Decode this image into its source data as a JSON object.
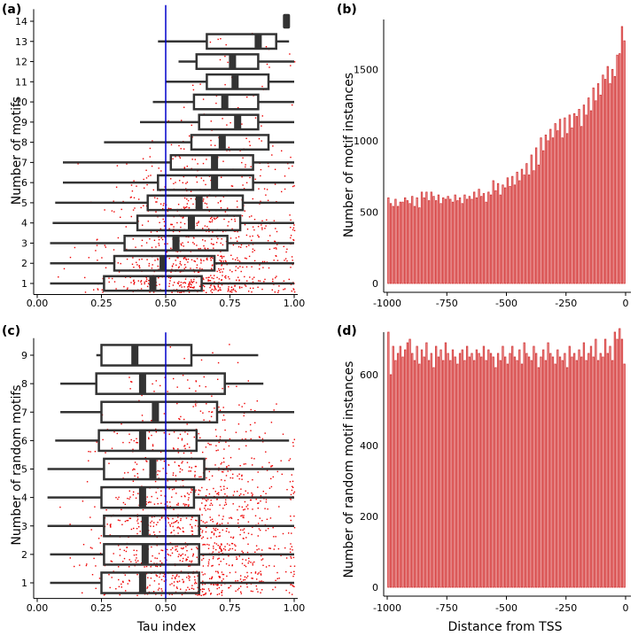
{
  "chart_data": [
    {
      "panel": "(a)",
      "type": "boxplot",
      "xlabel": "",
      "ylabel": "Number of motifs",
      "xlim": [
        0,
        1
      ],
      "xticks": [
        "0.00",
        "0.25",
        "0.50",
        "0.75",
        "1.00"
      ],
      "reference_line": 0.5,
      "categories": [
        "1",
        "2",
        "3",
        "4",
        "5",
        "6",
        "7",
        "8",
        "9",
        "10",
        "11",
        "12",
        "13",
        "14"
      ],
      "boxes": [
        {
          "cat": "1",
          "whisker_low": 0.05,
          "q1": 0.26,
          "median": 0.45,
          "q3": 0.64,
          "whisker_high": 1.0
        },
        {
          "cat": "2",
          "whisker_low": 0.05,
          "q1": 0.3,
          "median": 0.49,
          "q3": 0.69,
          "whisker_high": 1.0
        },
        {
          "cat": "3",
          "whisker_low": 0.05,
          "q1": 0.34,
          "median": 0.54,
          "q3": 0.74,
          "whisker_high": 1.0
        },
        {
          "cat": "4",
          "whisker_low": 0.06,
          "q1": 0.39,
          "median": 0.6,
          "q3": 0.79,
          "whisker_high": 1.0
        },
        {
          "cat": "5",
          "whisker_low": 0.07,
          "q1": 0.43,
          "median": 0.63,
          "q3": 0.8,
          "whisker_high": 1.0
        },
        {
          "cat": "6",
          "whisker_low": 0.1,
          "q1": 0.47,
          "median": 0.69,
          "q3": 0.84,
          "whisker_high": 1.0
        },
        {
          "cat": "7",
          "whisker_low": 0.1,
          "q1": 0.52,
          "median": 0.69,
          "q3": 0.84,
          "whisker_high": 1.0
        },
        {
          "cat": "8",
          "whisker_low": 0.26,
          "q1": 0.6,
          "median": 0.72,
          "q3": 0.9,
          "whisker_high": 1.0
        },
        {
          "cat": "9",
          "whisker_low": 0.4,
          "q1": 0.63,
          "median": 0.78,
          "q3": 0.86,
          "whisker_high": 1.0
        },
        {
          "cat": "10",
          "whisker_low": 0.45,
          "q1": 0.61,
          "median": 0.73,
          "q3": 0.86,
          "whisker_high": 1.0
        },
        {
          "cat": "11",
          "whisker_low": 0.5,
          "q1": 0.66,
          "median": 0.77,
          "q3": 0.9,
          "whisker_high": 1.0
        },
        {
          "cat": "12",
          "whisker_low": 0.55,
          "q1": 0.62,
          "median": 0.76,
          "q3": 0.86,
          "whisker_high": 1.0
        },
        {
          "cat": "13",
          "whisker_low": 0.47,
          "q1": 0.66,
          "median": 0.86,
          "q3": 0.93,
          "whisker_high": 0.98
        },
        {
          "cat": "14",
          "whisker_low": 0.97,
          "q1": 0.97,
          "median": 0.97,
          "q3": 0.97,
          "whisker_high": 0.97
        }
      ],
      "scatter_density": [
        1.0,
        0.7,
        0.55,
        0.45,
        0.35,
        0.25,
        0.18,
        0.12,
        0.06,
        0.05,
        0.04,
        0.04,
        0.03,
        0.0
      ]
    },
    {
      "panel": "(b)",
      "type": "bar",
      "xlabel": "",
      "ylabel": "Number of motif instances",
      "xlim": [
        -1000,
        0
      ],
      "ylim": [
        0,
        1800
      ],
      "xticks": [
        "-1000",
        "-750",
        "-500",
        "-250",
        "0"
      ],
      "yticks": [
        "0",
        "500",
        "1000",
        "1500"
      ],
      "bin_width": 10,
      "x_start": -1000,
      "values": [
        600,
        560,
        540,
        590,
        540,
        570,
        570,
        600,
        580,
        560,
        610,
        540,
        600,
        530,
        640,
        600,
        640,
        580,
        640,
        610,
        580,
        620,
        560,
        600,
        590,
        610,
        590,
        570,
        620,
        580,
        600,
        560,
        620,
        590,
        610,
        590,
        640,
        600,
        660,
        610,
        630,
        570,
        640,
        620,
        720,
        650,
        700,
        620,
        690,
        670,
        740,
        680,
        750,
        690,
        780,
        720,
        800,
        760,
        840,
        760,
        900,
        790,
        950,
        830,
        1020,
        930,
        1040,
        1000,
        1080,
        1020,
        1120,
        1070,
        1150,
        1020,
        1160,
        1050,
        1180,
        1090,
        1190,
        1170,
        1220,
        1100,
        1250,
        1180,
        1300,
        1210,
        1370,
        1280,
        1400,
        1320,
        1460,
        1430,
        1520,
        1400,
        1500,
        1450,
        1600,
        1610,
        1800,
        1700
      ]
    },
    {
      "panel": "(c)",
      "type": "boxplot",
      "xlabel": "Tau index",
      "ylabel": "Number of random motifs",
      "xlim": [
        0,
        1
      ],
      "xticks": [
        "0.00",
        "0.25",
        "0.50",
        "0.75",
        "1.00"
      ],
      "reference_line": 0.5,
      "categories": [
        "1",
        "2",
        "3",
        "4",
        "5",
        "6",
        "7",
        "8",
        "9"
      ],
      "boxes": [
        {
          "cat": "1",
          "whisker_low": 0.05,
          "q1": 0.25,
          "median": 0.41,
          "q3": 0.63,
          "whisker_high": 1.0
        },
        {
          "cat": "2",
          "whisker_low": 0.05,
          "q1": 0.26,
          "median": 0.42,
          "q3": 0.63,
          "whisker_high": 1.0
        },
        {
          "cat": "3",
          "whisker_low": 0.04,
          "q1": 0.26,
          "median": 0.42,
          "q3": 0.63,
          "whisker_high": 1.0
        },
        {
          "cat": "4",
          "whisker_low": 0.04,
          "q1": 0.25,
          "median": 0.41,
          "q3": 0.61,
          "whisker_high": 1.0
        },
        {
          "cat": "5",
          "whisker_low": 0.04,
          "q1": 0.26,
          "median": 0.45,
          "q3": 0.65,
          "whisker_high": 1.0
        },
        {
          "cat": "6",
          "whisker_low": 0.07,
          "q1": 0.24,
          "median": 0.41,
          "q3": 0.62,
          "whisker_high": 0.98
        },
        {
          "cat": "7",
          "whisker_low": 0.09,
          "q1": 0.25,
          "median": 0.46,
          "q3": 0.7,
          "whisker_high": 1.0
        },
        {
          "cat": "8",
          "whisker_low": 0.09,
          "q1": 0.23,
          "median": 0.41,
          "q3": 0.73,
          "whisker_high": 0.88
        },
        {
          "cat": "9",
          "whisker_low": 0.23,
          "q1": 0.25,
          "median": 0.38,
          "q3": 0.6,
          "whisker_high": 0.86
        }
      ],
      "scatter_density": [
        1.0,
        0.95,
        0.85,
        0.75,
        0.55,
        0.4,
        0.2,
        0.12,
        0.03
      ]
    },
    {
      "panel": "(d)",
      "type": "bar",
      "xlabel": "Distance from TSS",
      "ylabel": "Number of random motif instances",
      "xlim": [
        -1000,
        0
      ],
      "ylim": [
        0,
        700
      ],
      "xticks": [
        "-1000",
        "-750",
        "-500",
        "-250",
        "0"
      ],
      "yticks": [
        "0",
        "200",
        "400",
        "600"
      ],
      "bin_width": 10,
      "x_start": -1000,
      "values": [
        720,
        600,
        680,
        640,
        660,
        680,
        650,
        670,
        690,
        700,
        660,
        640,
        680,
        630,
        670,
        650,
        690,
        640,
        660,
        620,
        680,
        650,
        670,
        640,
        690,
        660,
        640,
        670,
        650,
        630,
        660,
        670,
        640,
        680,
        650,
        660,
        640,
        670,
        660,
        650,
        680,
        640,
        670,
        660,
        650,
        620,
        660,
        640,
        680,
        650,
        630,
        660,
        680,
        650,
        640,
        670,
        630,
        690,
        660,
        650,
        640,
        680,
        660,
        620,
        650,
        670,
        640,
        690,
        660,
        650,
        630,
        670,
        650,
        640,
        660,
        620,
        680,
        650,
        660,
        640,
        670,
        650,
        690,
        640,
        660,
        680,
        650,
        700,
        640,
        660,
        650,
        700,
        660,
        680,
        640,
        720,
        700,
        730,
        700,
        630
      ]
    }
  ],
  "panel_labels": [
    "(a)",
    "(b)",
    "(c)",
    "(d)"
  ]
}
